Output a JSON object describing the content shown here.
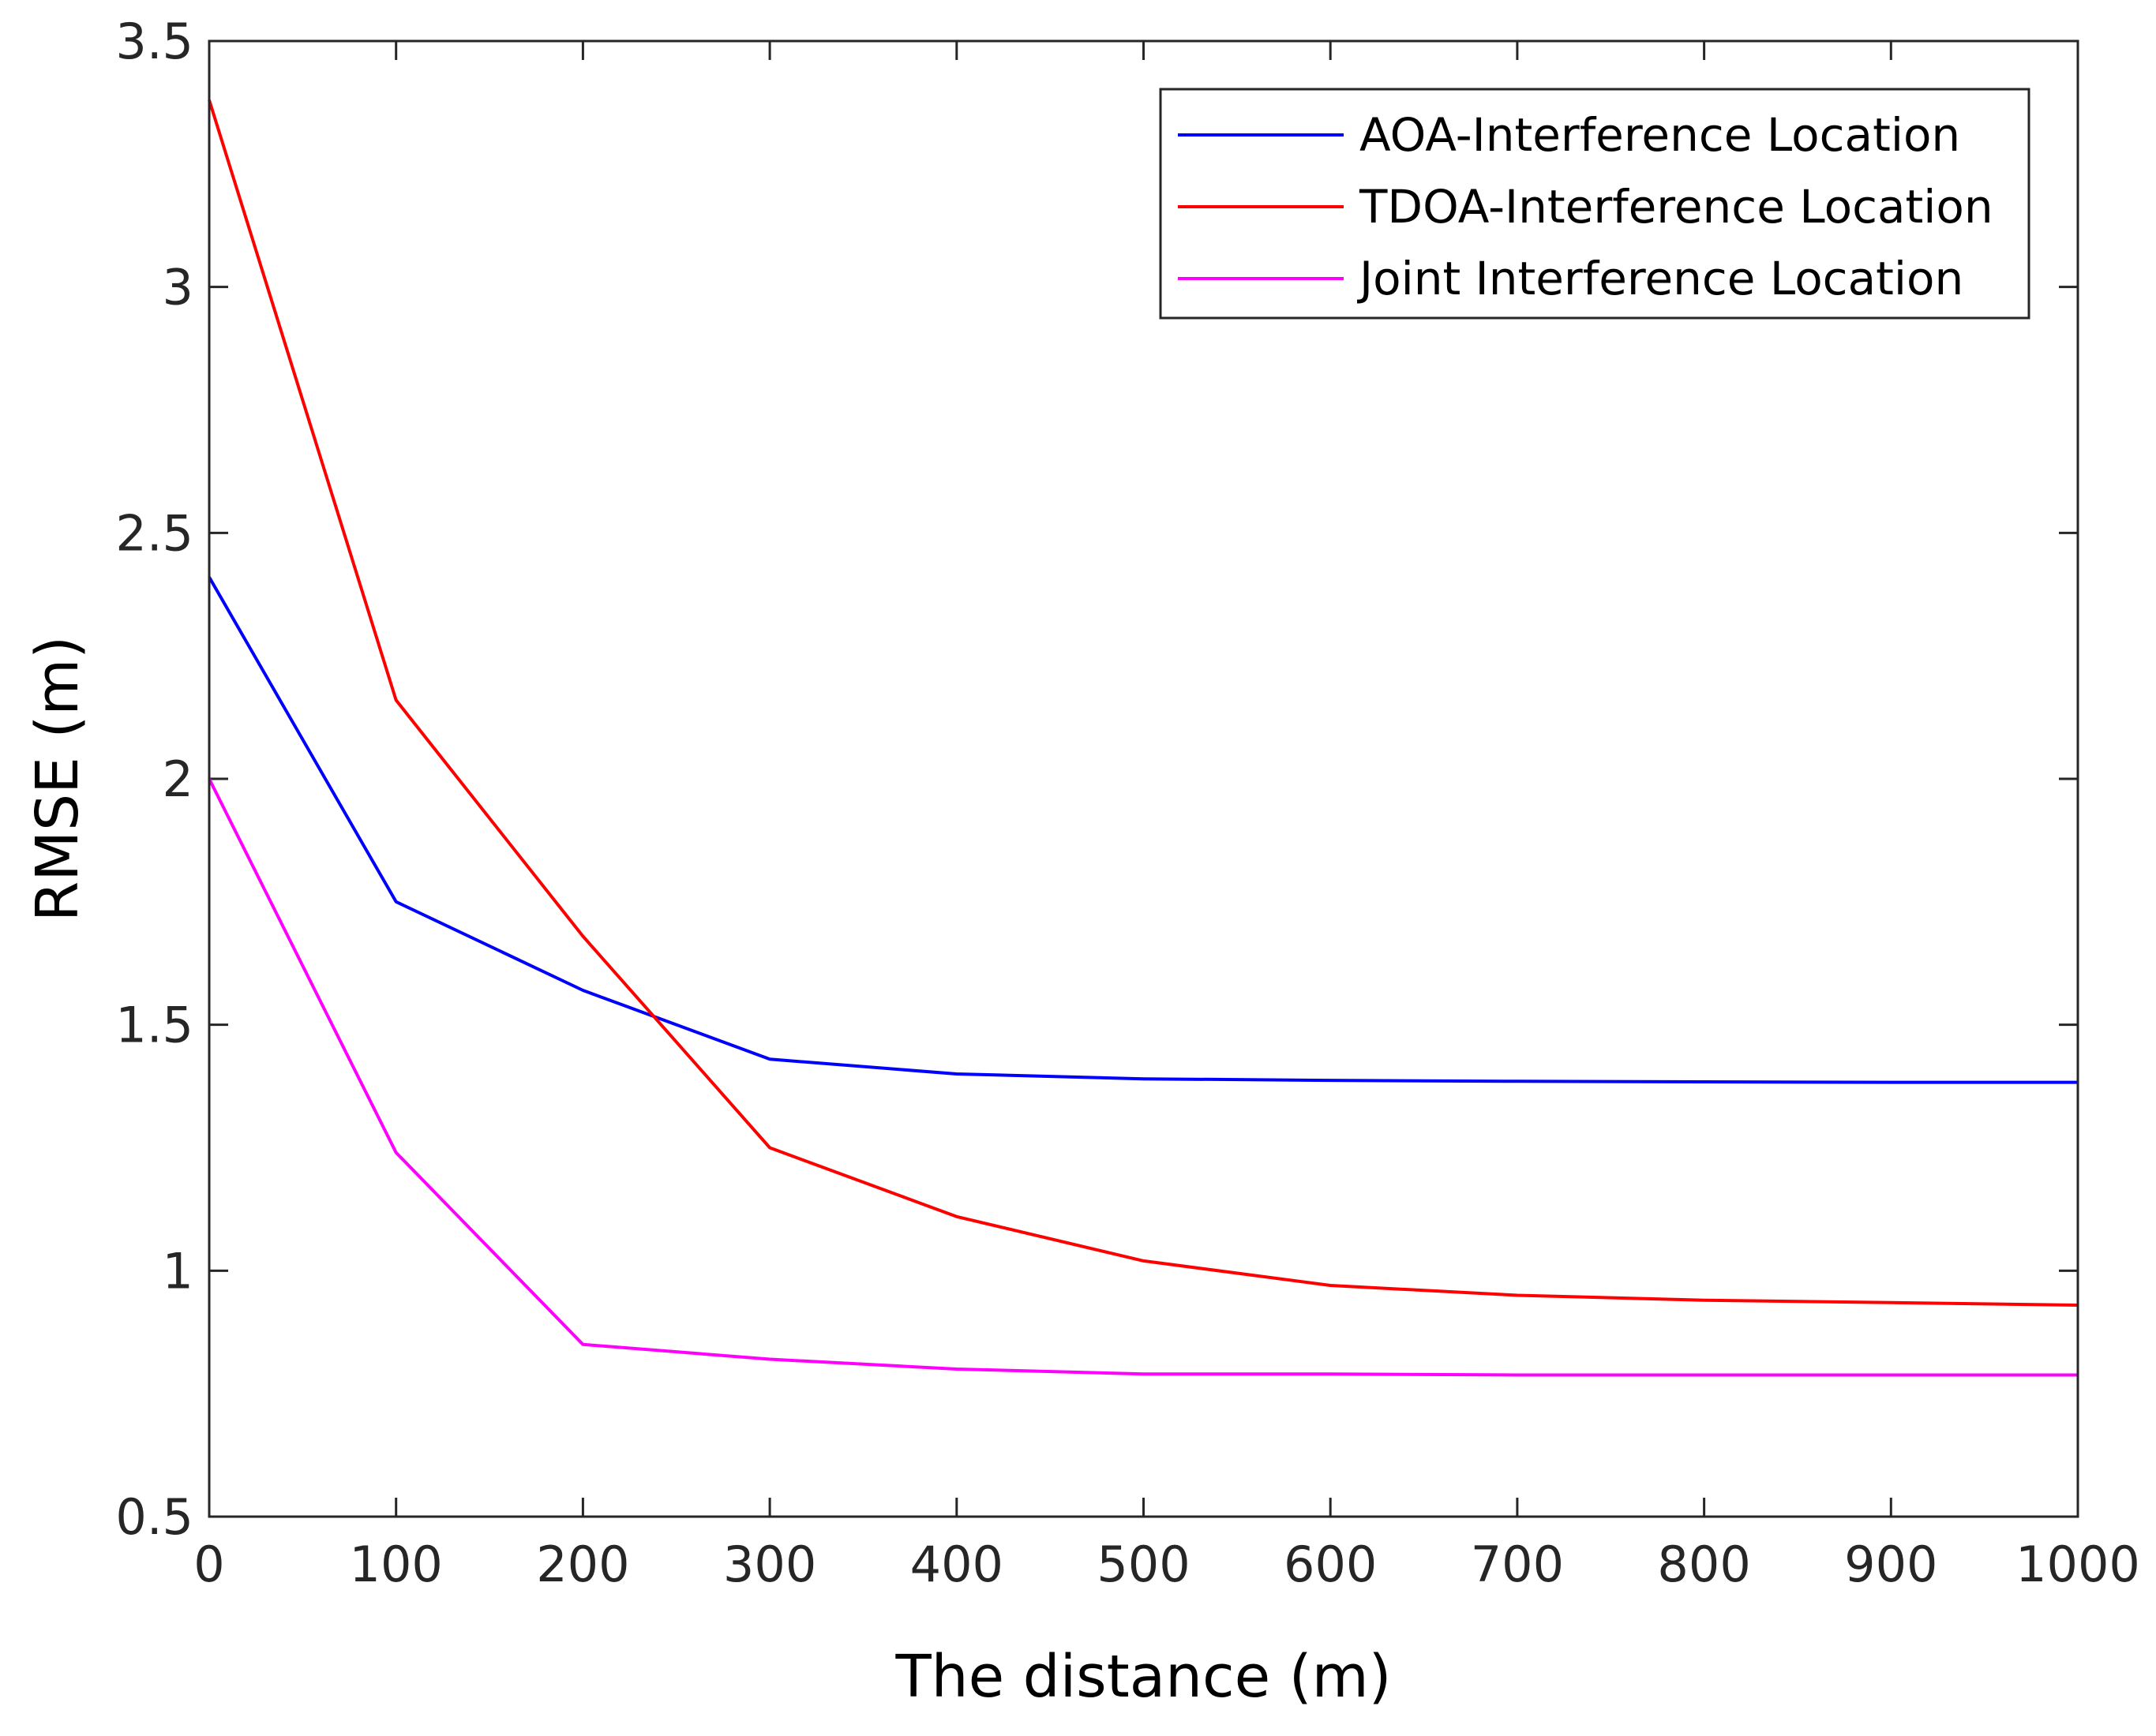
{
  "chart_data": {
    "type": "line",
    "title": "",
    "xlabel": "The distance (m)",
    "ylabel": "RMSE (m)",
    "xlim": [
      0,
      1000
    ],
    "ylim": [
      0.5,
      3.5
    ],
    "xticks": [
      0,
      100,
      200,
      300,
      400,
      500,
      600,
      700,
      800,
      900,
      1000
    ],
    "xtick_labels": [
      "0",
      "100",
      "200",
      "300",
      "400",
      "500",
      "600",
      "700",
      "800",
      "900",
      "1000"
    ],
    "yticks": [
      0.5,
      1,
      1.5,
      2,
      2.5,
      3,
      3.5
    ],
    "ytick_labels": [
      "0.5",
      "1",
      "1.5",
      "2",
      "2.5",
      "3",
      "3.5"
    ],
    "grid": false,
    "legend_position": "top-right",
    "x": [
      0,
      100,
      200,
      300,
      400,
      500,
      600,
      700,
      800,
      900,
      1000
    ],
    "series": [
      {
        "name": "AOA-Interference Location",
        "color": "#0000ff",
        "values": [
          2.41,
          1.75,
          1.57,
          1.43,
          1.4,
          1.39,
          1.387,
          1.385,
          1.384,
          1.383,
          1.383
        ]
      },
      {
        "name": "TDOA-Interference Location",
        "color": "#ff0000",
        "values": [
          3.38,
          2.16,
          1.68,
          1.25,
          1.11,
          1.02,
          0.97,
          0.95,
          0.94,
          0.935,
          0.93
        ]
      },
      {
        "name": "Joint Interference Location",
        "color": "#ff00ff",
        "values": [
          2.0,
          1.24,
          0.85,
          0.82,
          0.8,
          0.79,
          0.79,
          0.788,
          0.788,
          0.788,
          0.788
        ]
      }
    ]
  }
}
